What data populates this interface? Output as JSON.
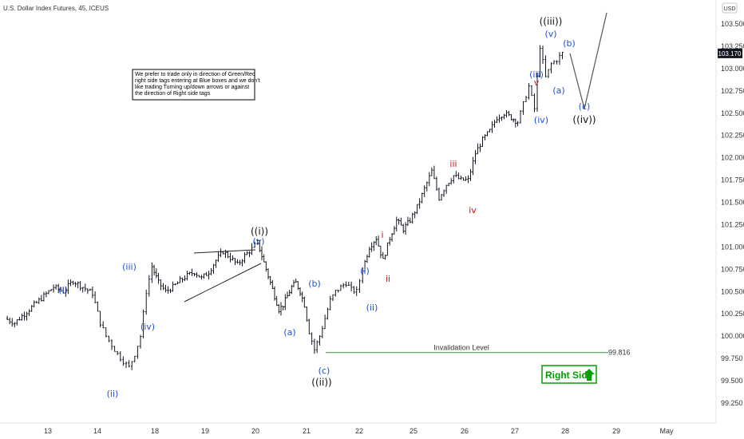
{
  "header": {
    "title": "U.S. Dollar Index Futures, 45, ICEUS"
  },
  "price_axis": {
    "currency": "USD",
    "ticks": [
      "103.500",
      "103.250",
      "103.000",
      "102.750",
      "102.500",
      "102.250",
      "102.000",
      "101.750",
      "101.500",
      "101.250",
      "101.000",
      "100.750",
      "100.500",
      "100.250",
      "100.000",
      "99.750",
      "99.500",
      "99.250"
    ],
    "last_price": "103.170"
  },
  "time_axis": {
    "ticks": [
      "13",
      "14",
      "18",
      "19",
      "20",
      "21",
      "22",
      "25",
      "26",
      "27",
      "28",
      "29",
      "May"
    ]
  },
  "note": {
    "lines": [
      "We prefer to trade only in direction of Green/Red",
      "right side tags entering at Blue boxes and we don't",
      "like trading Turning up/down arrows or against",
      "the direction of Right side tags"
    ]
  },
  "invalidation": {
    "label": "Invalidation Level",
    "price": "99.816"
  },
  "right_side_tag": {
    "label": "Right Side",
    "color": "#00a000"
  },
  "colors": {
    "blue": "#1e50d2",
    "red": "#b41e1e",
    "black": "#111111",
    "green": "#2ca02c"
  },
  "wave_labels": [
    {
      "text": "(i)",
      "color": "blue"
    },
    {
      "text": "(ii)",
      "color": "blue"
    },
    {
      "text": "(iii)",
      "color": "blue"
    },
    {
      "text": "(iv)",
      "color": "blue"
    },
    {
      "text": "(v)",
      "color": "blue"
    },
    {
      "text": "((i))",
      "color": "black"
    },
    {
      "text": "(a)",
      "color": "blue"
    },
    {
      "text": "(b)",
      "color": "blue"
    },
    {
      "text": "(c)",
      "color": "blue"
    },
    {
      "text": "((ii))",
      "color": "black"
    },
    {
      "text": "(i)",
      "color": "blue"
    },
    {
      "text": "(ii)",
      "color": "blue"
    },
    {
      "text": "i",
      "color": "red"
    },
    {
      "text": "ii",
      "color": "red"
    },
    {
      "text": "iii",
      "color": "red"
    },
    {
      "text": "iv",
      "color": "red"
    },
    {
      "text": "(iii)",
      "color": "blue"
    },
    {
      "text": "v",
      "color": "red"
    },
    {
      "text": "(iv)",
      "color": "blue"
    },
    {
      "text": "(v)",
      "color": "blue"
    },
    {
      "text": "((iii))",
      "color": "black"
    },
    {
      "text": "(a)",
      "color": "blue"
    },
    {
      "text": "(b)",
      "color": "blue"
    },
    {
      "text": "(c)",
      "color": "blue"
    },
    {
      "text": "((iv))",
      "color": "black"
    }
  ],
  "chart_data": {
    "type": "ohlc",
    "x_ticks": [
      "13",
      "14",
      "18",
      "19",
      "20",
      "21",
      "22",
      "25",
      "26",
      "27",
      "28",
      "29",
      "May"
    ],
    "ylim": [
      99.2,
      103.7
    ],
    "path": [
      [
        "13",
        100.2
      ],
      [
        "13",
        100.15
      ],
      [
        "13",
        100.25
      ],
      [
        "13",
        100.35
      ],
      [
        "13",
        100.45
      ],
      [
        "13",
        100.55
      ],
      [
        "13",
        100.5
      ],
      [
        "13",
        100.62
      ],
      [
        "13",
        100.55
      ],
      [
        "13",
        100.48
      ],
      [
        "14",
        100.15
      ],
      [
        "14",
        100.0
      ],
      [
        "14",
        99.9
      ],
      [
        "14",
        99.8
      ],
      [
        "14",
        99.72
      ],
      [
        "14",
        99.65
      ],
      [
        "14",
        99.8
      ],
      [
        "14",
        100.0
      ],
      [
        "14",
        100.5
      ],
      [
        "14",
        100.78
      ],
      [
        "18",
        100.6
      ],
      [
        "18",
        100.5
      ],
      [
        "18",
        100.55
      ],
      [
        "18",
        100.62
      ],
      [
        "18",
        100.68
      ],
      [
        "18",
        100.72
      ],
      [
        "18",
        100.65
      ],
      [
        "19",
        100.72
      ],
      [
        "19",
        100.85
      ],
      [
        "19",
        100.95
      ],
      [
        "19",
        100.88
      ],
      [
        "19",
        100.8
      ],
      [
        "19",
        100.9
      ],
      [
        "19",
        100.98
      ],
      [
        "20",
        101.05
      ],
      [
        "20",
        100.9
      ],
      [
        "20",
        100.75
      ],
      [
        "20",
        100.6
      ],
      [
        "20",
        100.45
      ],
      [
        "20",
        100.3
      ],
      [
        "20",
        100.35
      ],
      [
        "20",
        100.45
      ],
      [
        "20",
        100.55
      ],
      [
        "20",
        100.6
      ],
      [
        "20",
        100.5
      ],
      [
        "20",
        100.35
      ],
      [
        "21",
        100.05
      ],
      [
        "21",
        99.85
      ],
      [
        "21",
        100.0
      ],
      [
        "21",
        100.2
      ],
      [
        "21",
        100.4
      ],
      [
        "21",
        100.5
      ],
      [
        "21",
        100.55
      ],
      [
        "21",
        100.6
      ],
      [
        "21",
        100.52
      ],
      [
        "21",
        100.5
      ],
      [
        "22",
        100.75
      ],
      [
        "22",
        101.0
      ],
      [
        "22",
        101.1
      ],
      [
        "22",
        100.85
      ],
      [
        "22",
        101.1
      ],
      [
        "22",
        101.3
      ],
      [
        "22",
        101.2
      ],
      [
        "22",
        101.3
      ],
      [
        "25",
        101.45
      ],
      [
        "25",
        101.65
      ],
      [
        "25",
        101.85
      ],
      [
        "25",
        101.55
      ],
      [
        "25",
        101.7
      ],
      [
        "25",
        101.8
      ],
      [
        "25",
        101.75
      ],
      [
        "26",
        101.75
      ],
      [
        "26",
        102.05
      ],
      [
        "26",
        102.2
      ],
      [
        "26",
        102.3
      ],
      [
        "26",
        102.45
      ],
      [
        "26",
        102.5
      ],
      [
        "26",
        102.45
      ],
      [
        "27",
        102.4
      ],
      [
        "27",
        102.6
      ],
      [
        "27",
        102.8
      ],
      [
        "27",
        102.55
      ],
      [
        "27",
        103.25
      ],
      [
        "27",
        102.9
      ],
      [
        "27",
        103.05
      ],
      [
        "27",
        103.1
      ],
      [
        "27",
        103.17
      ]
    ],
    "projection": [
      [
        "28",
        103.17
      ],
      [
        "28",
        102.7
      ],
      [
        "29",
        103.6
      ]
    ],
    "invalidation_level": 99.816,
    "last_price": 103.17
  }
}
